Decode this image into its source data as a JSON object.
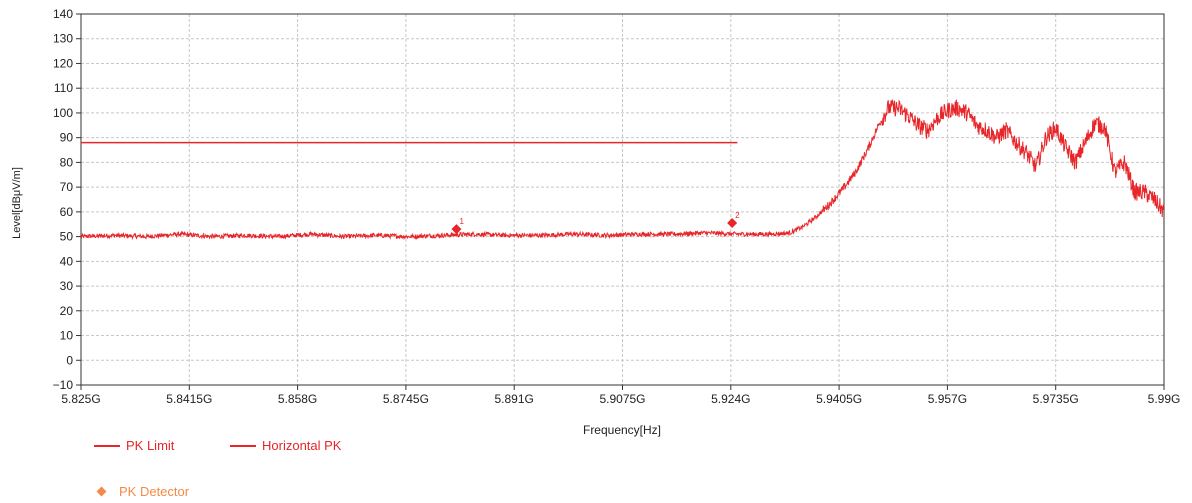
{
  "colors": {
    "trace": "#e8262a",
    "limit": "#e8262a",
    "detector_legend": "#f58a46",
    "legend_text_red": "#e8262a",
    "grid": "#c8c8c8",
    "axis_text": "#222222"
  },
  "legend": {
    "limit_label": "PK Limit",
    "trace_label": "Horizontal PK",
    "detector_label": "PK Detector"
  },
  "chart_data": {
    "type": "line",
    "title": "",
    "xlabel": "Frequency[Hz]",
    "ylabel": "Level[dBμV/m]",
    "xlim": [
      5.825,
      5.99
    ],
    "ylim": [
      -10,
      140
    ],
    "x_unit": "GHz",
    "grid": true,
    "legend_position": "bottom-left",
    "x_tick_values": [
      5.825,
      5.8415,
      5.858,
      5.8745,
      5.891,
      5.9075,
      5.924,
      5.9405,
      5.957,
      5.9735,
      5.99
    ],
    "x_tick_labels": [
      "5.825G",
      "5.8415G",
      "5.858G",
      "5.8745G",
      "5.891G",
      "5.9075G",
      "5.924G",
      "5.9405G",
      "5.957G",
      "5.9735G",
      "5.99G"
    ],
    "y_tick_values": [
      -10,
      0,
      10,
      20,
      30,
      40,
      50,
      60,
      70,
      80,
      90,
      100,
      110,
      120,
      130,
      140
    ],
    "y_tick_labels": [
      "−10",
      "0",
      "10",
      "20",
      "30",
      "40",
      "50",
      "60",
      "70",
      "80",
      "90",
      "100",
      "110",
      "120",
      "130",
      "140"
    ],
    "series": [
      {
        "name": "PK Limit",
        "x": [
          5.825,
          5.925
        ],
        "y": [
          88,
          88
        ]
      },
      {
        "name": "Horizontal PK",
        "x": [
          5.825,
          5.83,
          5.835,
          5.84,
          5.845,
          5.85,
          5.855,
          5.86,
          5.865,
          5.87,
          5.875,
          5.88,
          5.885,
          5.89,
          5.895,
          5.9,
          5.905,
          5.91,
          5.915,
          5.92,
          5.925,
          5.93,
          5.933,
          5.935,
          5.937,
          5.939,
          5.941,
          5.943,
          5.945,
          5.9465,
          5.948,
          5.9495,
          5.951,
          5.9525,
          5.954,
          5.9555,
          5.957,
          5.9585,
          5.96,
          5.9615,
          5.963,
          5.9645,
          5.966,
          5.9675,
          5.969,
          5.9705,
          5.972,
          5.9735,
          5.975,
          5.9765,
          5.978,
          5.9795,
          5.981,
          5.9825,
          5.984,
          5.9855,
          5.987,
          5.9885,
          5.99
        ],
        "y": [
          50,
          50.5,
          50,
          51,
          50,
          50.5,
          50,
          51,
          50,
          50.5,
          50,
          50.5,
          51,
          50.5,
          50.5,
          51,
          50.5,
          51,
          51,
          51.5,
          51,
          51,
          51.5,
          54,
          58,
          63,
          69,
          76,
          86,
          95,
          102,
          102,
          99,
          95,
          93,
          98,
          101,
          102,
          100,
          95,
          93,
          90,
          93,
          88,
          84,
          78,
          90,
          94,
          86,
          80,
          88,
          96,
          94,
          76,
          80,
          68,
          68,
          65,
          60
        ]
      },
      {
        "name": "PK Detector",
        "type": "scatter",
        "x": [
          5.8822,
          5.9242
        ],
        "y": [
          53,
          55.5
        ],
        "labels": [
          "1",
          "2"
        ]
      }
    ]
  }
}
